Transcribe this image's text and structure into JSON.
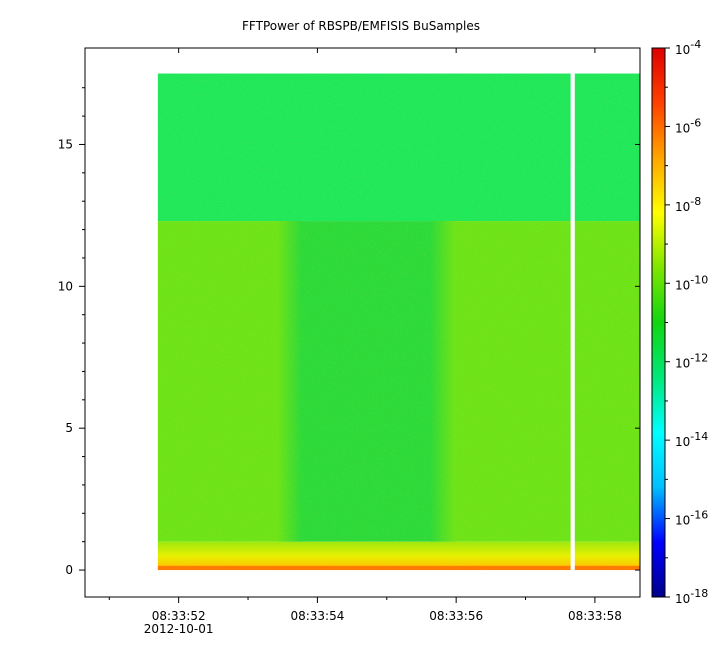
{
  "chart_data": {
    "type": "heatmap",
    "title": "FFTPower of RBSPB/EMFISIS  BuSamples",
    "xlabel": "",
    "ylabel": "",
    "x_axis": {
      "ticks": [
        {
          "value": 52,
          "label": "08:33:52"
        },
        {
          "value": 54,
          "label": "08:33:54"
        },
        {
          "value": 56,
          "label": "08:33:56"
        },
        {
          "value": 58,
          "label": "08:33:58"
        }
      ],
      "minor_ticks": [
        51,
        53,
        55,
        57
      ],
      "date_label": "2012-10-01",
      "range": [
        50.65,
        58.65
      ]
    },
    "y_axis": {
      "ticks": [
        {
          "value": 0,
          "label": "0"
        },
        {
          "value": 5,
          "label": "5"
        },
        {
          "value": 10,
          "label": "10"
        },
        {
          "value": 15,
          "label": "15"
        }
      ],
      "range": [
        -0.95,
        18.4
      ]
    },
    "colorbar": {
      "scale": "log",
      "range_exp": [
        -18,
        -4
      ],
      "ticks": [
        {
          "exp": -18,
          "base": "10",
          "sup": "-18"
        },
        {
          "exp": -16,
          "base": "10",
          "sup": "-16"
        },
        {
          "exp": -14,
          "base": "10",
          "sup": "-14"
        },
        {
          "exp": -12,
          "base": "10",
          "sup": "-12"
        },
        {
          "exp": -10,
          "base": "10",
          "sup": "-10"
        },
        {
          "exp": -8,
          "base": "10",
          "sup": "-8"
        },
        {
          "exp": -6,
          "base": "10",
          "sup": "-6"
        },
        {
          "exp": -4,
          "base": "10",
          "sup": "-4"
        }
      ],
      "colors": [
        "#00008b",
        "#0000ff",
        "#00bfff",
        "#00ffff",
        "#00e87a",
        "#11d611",
        "#7fe600",
        "#ffff00",
        "#ffa500",
        "#ff4000",
        "#dd0000"
      ]
    },
    "spectrogram": {
      "data_x_range": [
        51.7,
        58.65
      ],
      "freq_range": [
        0,
        17.5
      ],
      "gap": {
        "x": 57.65,
        "width": 0.06
      },
      "regions": [
        {
          "name": "high-frequency band",
          "x": [
            51.7,
            58.65
          ],
          "y": [
            12.3,
            17.5
          ],
          "log_power": -12.3,
          "color": "#21e85a"
        },
        {
          "name": "mid band left",
          "x": [
            51.7,
            53.6
          ],
          "y": [
            1.0,
            12.3
          ],
          "log_power": -10.3,
          "color": "#6ee318"
        },
        {
          "name": "mid band quiet",
          "x": [
            53.6,
            55.8
          ],
          "y": [
            1.0,
            12.3
          ],
          "log_power": -11.8,
          "color": "#2ed93a"
        },
        {
          "name": "mid band right",
          "x": [
            55.8,
            58.65
          ],
          "y": [
            1.0,
            12.3
          ],
          "log_power": -10.3,
          "color": "#6ee318"
        },
        {
          "name": "low frequency band",
          "x": [
            51.7,
            58.65
          ],
          "y": [
            0.1,
            1.0
          ],
          "log_power": -8.5,
          "color": "#d6f200"
        },
        {
          "name": "lowest bin",
          "x": [
            51.7,
            58.65
          ],
          "y": [
            0.0,
            0.15
          ],
          "log_power": -6.2,
          "color": "#ff7a00"
        }
      ]
    }
  }
}
